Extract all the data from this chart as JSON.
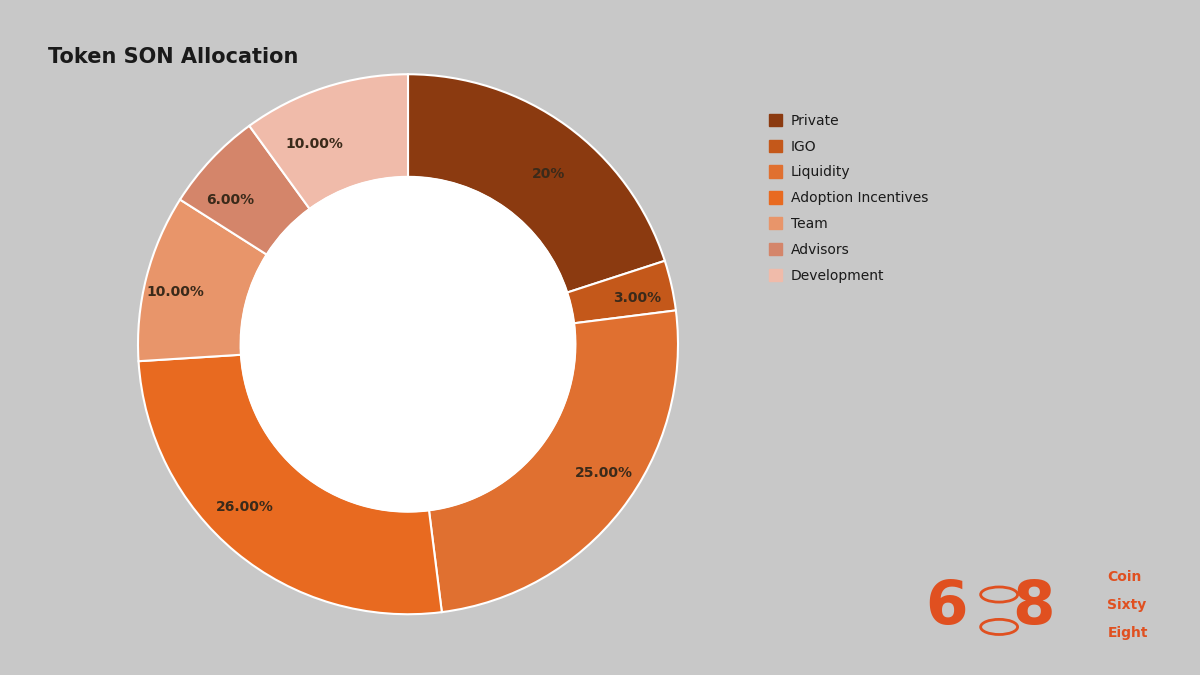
{
  "title": "Token SON Allocation",
  "background_color": "#c8c8c8",
  "segments": [
    {
      "label": "Private",
      "value": 20,
      "pct_label": "20%",
      "color": "#8B3A10"
    },
    {
      "label": "IGO",
      "value": 3,
      "pct_label": "3.00%",
      "color": "#C4581A"
    },
    {
      "label": "Liquidity",
      "value": 25,
      "pct_label": "25.00%",
      "color": "#E07030"
    },
    {
      "label": "Adoption Incentives",
      "value": 26,
      "pct_label": "26.00%",
      "color": "#E86A20"
    },
    {
      "label": "Team",
      "value": 10,
      "pct_label": "10.00%",
      "color": "#E8956A"
    },
    {
      "label": "Advisors",
      "value": 6,
      "pct_label": "6.00%",
      "color": "#D4856A"
    },
    {
      "label": "Development",
      "value": 10,
      "pct_label": "10.00%",
      "color": "#F0BBAA"
    }
  ],
  "title_fontsize": 15,
  "label_fontsize": 10,
  "legend_fontsize": 10,
  "donut_width": 0.38,
  "start_angle": 90
}
